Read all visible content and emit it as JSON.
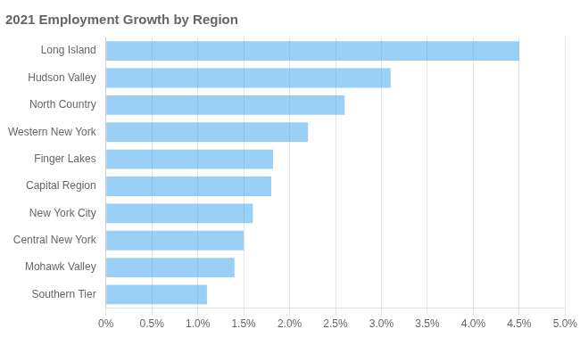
{
  "chart_data": {
    "type": "bar",
    "orientation": "horizontal",
    "title": "2021 Employment Growth by Region",
    "categories": [
      "Southern Tier",
      "Mohawk Valley",
      "Central New York",
      "New York City",
      "Capital Region",
      "Finger Lakes",
      "Western New York",
      "North Country",
      "Hudson Valley",
      "Long Island"
    ],
    "values": [
      1.1,
      1.4,
      1.5,
      1.6,
      1.8,
      1.82,
      2.2,
      2.6,
      3.1,
      4.5
    ],
    "xlim": [
      0,
      5.0
    ],
    "xticks": [
      {
        "value": 0,
        "label": "0%"
      },
      {
        "value": 0.5,
        "label": "0.5%"
      },
      {
        "value": 1.0,
        "label": "1.0%"
      },
      {
        "value": 1.5,
        "label": "1.5%"
      },
      {
        "value": 2.0,
        "label": "2.0%"
      },
      {
        "value": 2.5,
        "label": "2.5%"
      },
      {
        "value": 3.0,
        "label": "3.0%"
      },
      {
        "value": 3.5,
        "label": "3.5%"
      },
      {
        "value": 4.0,
        "label": "4.0%"
      },
      {
        "value": 4.5,
        "label": "4.5%"
      },
      {
        "value": 5.0,
        "label": "5.0%"
      }
    ],
    "grid": true
  }
}
